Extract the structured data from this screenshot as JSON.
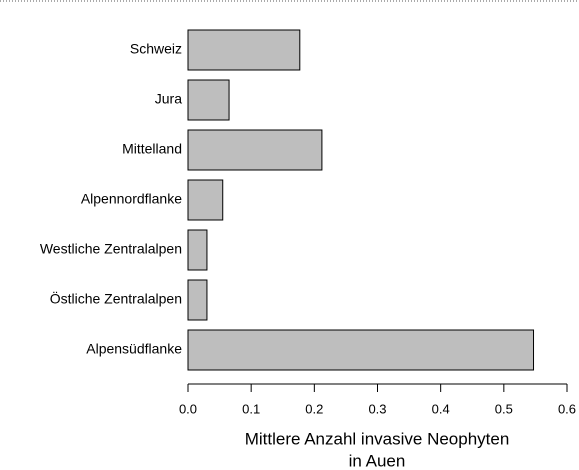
{
  "chart_data": {
    "type": "barh",
    "categories": [
      "Schweiz",
      "Jura",
      "Mittelland",
      "Alpennordflanke",
      "Westliche Zentralalpen",
      "Östliche Zentralalpen",
      "Alpensüdflanke"
    ],
    "values": [
      0.177,
      0.065,
      0.212,
      0.055,
      0.03,
      0.03,
      0.547
    ],
    "color": "#bebebe",
    "xlabel": [
      "Mittlere Anzahl invasive Neophyten",
      "in Auen"
    ],
    "xlim": [
      0,
      0.6
    ],
    "xticks": [
      {
        "value": 0,
        "label": "0.0"
      },
      0.1,
      0.2,
      0.3,
      0.4,
      0.5,
      0.6
    ]
  }
}
